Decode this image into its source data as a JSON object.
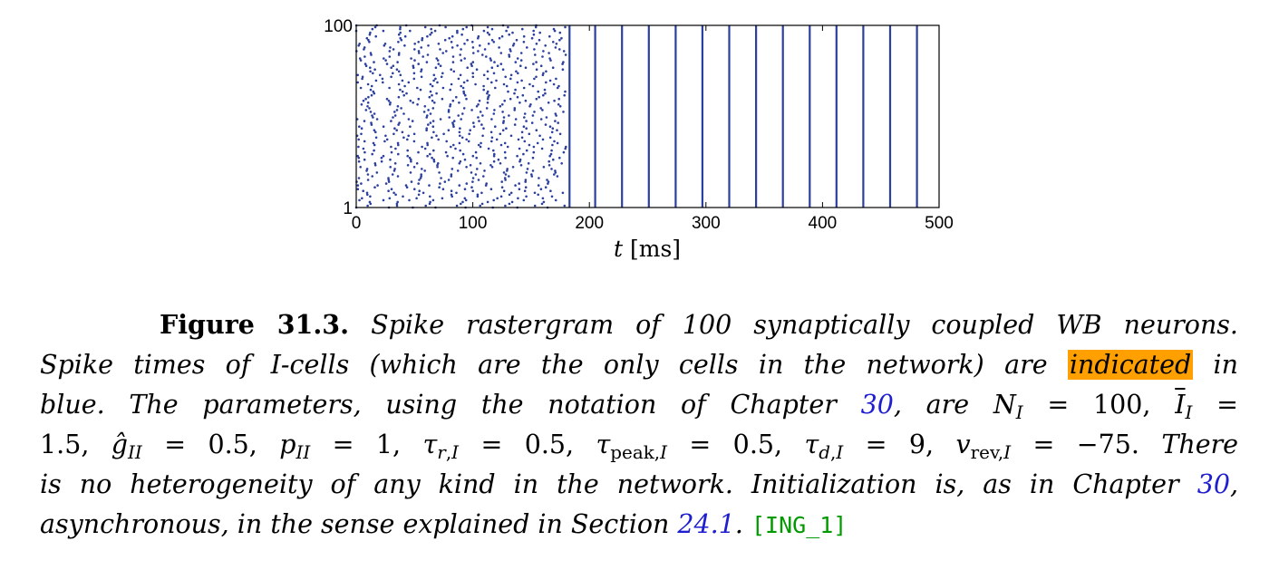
{
  "chart_data": {
    "type": "scatter",
    "xlabel_var": "t",
    "xlabel_unit": "[ms]",
    "xlim": [
      0,
      500
    ],
    "ylim": [
      1,
      100
    ],
    "x_ticks": [
      0,
      100,
      200,
      300,
      400,
      500
    ],
    "y_ticks": [
      1,
      100
    ],
    "marker_color": "#2b3f9e",
    "async_until_ms": 180,
    "sync_volley_times_ms": [
      183,
      205,
      228,
      251,
      274,
      297,
      320,
      343,
      366,
      389,
      412,
      435,
      458,
      481
    ],
    "neurons": 100
  },
  "caption": {
    "label": "Figure 31.3.",
    "line1_a": "Spike rastergram of 100 synaptically coupled WB neurons.",
    "line2_a": "Spike times of I-cells (which are the only cells in the network) are",
    "line2_hl": "indicated",
    "line2_b": "in",
    "line3_a": "blue. The parameters, using the notation of Chapter",
    "ref_chapter": "30",
    "line3_b": ", are",
    "line5_a": "There",
    "line5_b": "is no heterogeneity of any kind in the network. Initialization is, as in Chapter",
    "line5_c": ",",
    "line6_a": "asynchronous, in the sense explained in Section",
    "ref_section": "24.1",
    "line6_b": ".",
    "tag": "[ING_1]"
  }
}
